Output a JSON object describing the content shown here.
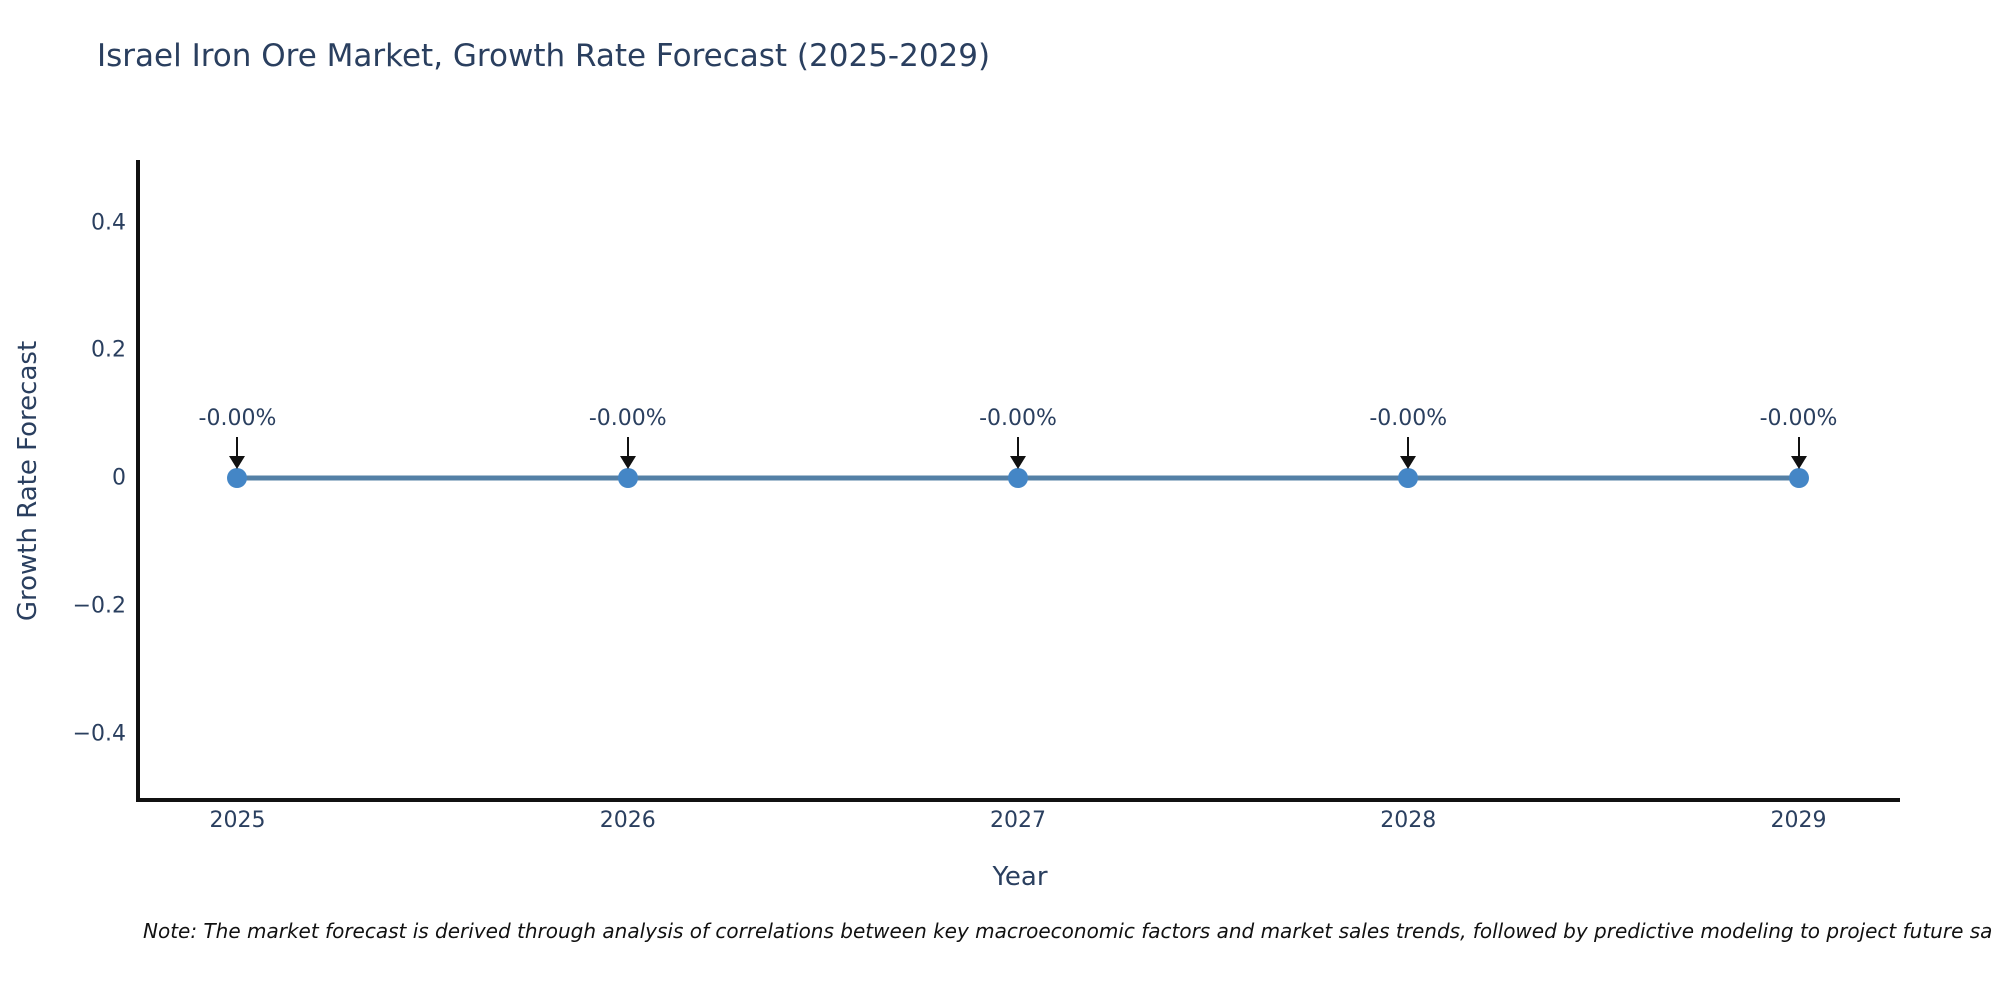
{
  "chart_data": {
    "type": "line",
    "title": "Israel Iron Ore Market, Growth Rate Forecast (2025-2029)",
    "xlabel": "Year",
    "ylabel": "Growth Rate Forecast",
    "x": [
      2025,
      2026,
      2027,
      2028,
      2029
    ],
    "y": [
      0,
      0,
      0,
      0,
      0
    ],
    "point_labels": [
      "-0.00%",
      "-0.00%",
      "-0.00%",
      "-0.00%",
      "-0.00%"
    ],
    "xtick_labels": [
      "2025",
      "2026",
      "2027",
      "2028",
      "2029"
    ],
    "yticks": [
      0.4,
      0.2,
      0,
      -0.2,
      -0.4
    ],
    "ytick_labels": [
      "0.4",
      "0.2",
      "0",
      "−0.2",
      "−0.4"
    ],
    "xlim": [
      2024.74,
      2029.26
    ],
    "ylim": [
      -0.507,
      0.498
    ],
    "grid": false,
    "legend": "none",
    "colors": {
      "line": "#5480a6",
      "marker": "#4486c6",
      "arrow": "#111111",
      "axis": "#111111",
      "text": "#2a3f5f"
    }
  },
  "note": {
    "text": "Note: The market forecast is derived through analysis of correlations between key macroeconomic factors and market sales trends, followed by predictive modeling to project future sa"
  }
}
